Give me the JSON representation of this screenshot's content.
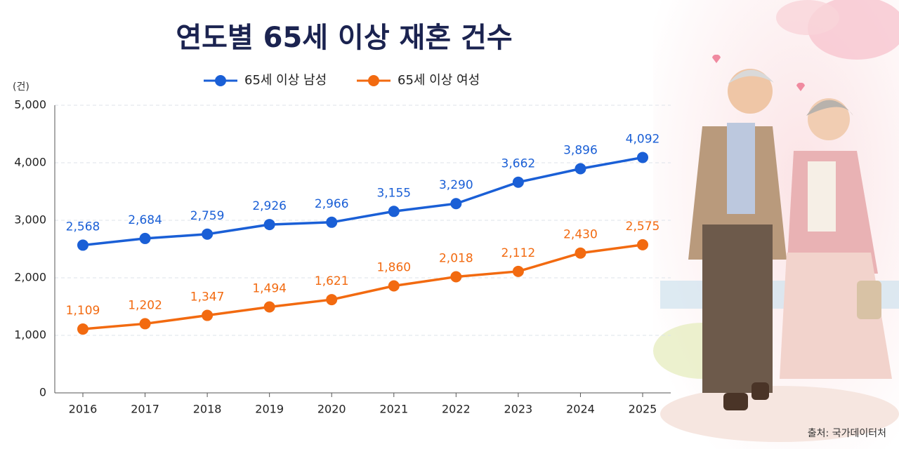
{
  "chart_data": {
    "type": "line",
    "title": "연도별 65세 이상 재혼 건수",
    "y_label": "(건)",
    "source": "출처: 국가데이터처",
    "categories": [
      "2016",
      "2017",
      "2018",
      "2019",
      "2020",
      "2021",
      "2022",
      "2023",
      "2024",
      "2025"
    ],
    "series": [
      {
        "name": "65세 이상 남성",
        "color": "#1a5fd6",
        "values": [
          2568,
          2684,
          2759,
          2926,
          2966,
          3155,
          3290,
          3662,
          3896,
          4092
        ],
        "value_labels": [
          "2,568",
          "2,684",
          "2,759",
          "2,926",
          "2,966",
          "3,155",
          "3,290",
          "3,662",
          "3,896",
          "4,092"
        ]
      },
      {
        "name": "65세 이상 여성",
        "color": "#f26a10",
        "values": [
          1109,
          1202,
          1347,
          1494,
          1621,
          1860,
          2018,
          2112,
          2430,
          2575
        ],
        "value_labels": [
          "1,109",
          "1,202",
          "1,347",
          "1,494",
          "1,621",
          "1,860",
          "2,018",
          "2,112",
          "2,430",
          "2,575"
        ]
      }
    ],
    "ylim": [
      0,
      5000
    ],
    "yticks": [
      0,
      {
        "value": 1000,
        "label": "1,000"
      },
      {
        "value": 2000,
        "label": "2,000"
      },
      {
        "value": 3000,
        "label": "3,000"
      },
      {
        "value": 4000,
        "label": "4,000"
      },
      {
        "value": 5000,
        "label": "5,000"
      }
    ],
    "grid": true
  }
}
